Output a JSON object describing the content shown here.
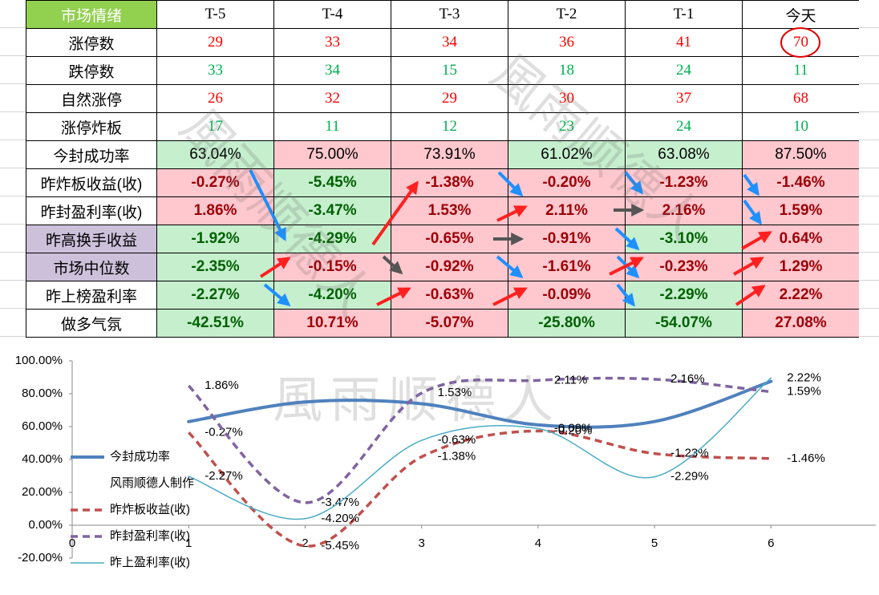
{
  "watermark": "風雨顺德人",
  "table": {
    "rows": [
      {
        "cells": [
          "市场情绪",
          "T-5",
          "T-4",
          "T-3",
          "T-2",
          "T-1",
          "今天"
        ],
        "fills": [
          "#92d050",
          "#ffffff",
          "#ffffff",
          "#ffffff",
          "#ffffff",
          "#ffffff",
          "#ffffff"
        ],
        "ink": [
          "#ffffff",
          "#000000",
          "#000000",
          "#000000",
          "#000000",
          "#000000",
          "#000000"
        ],
        "font": "serif",
        "bold": false
      },
      {
        "cells": [
          "涨停数",
          29,
          33,
          34,
          36,
          41,
          70
        ],
        "fills": [
          "#ffffff",
          "#ffffff",
          "#ffffff",
          "#ffffff",
          "#ffffff",
          "#ffffff",
          "#ffffff"
        ],
        "ink": [
          "#000000",
          "#ff0000",
          "#ff0000",
          "#ff0000",
          "#ff0000",
          "#ff0000",
          "#ff0000"
        ],
        "font": "serif",
        "bold": false
      },
      {
        "cells": [
          "跌停数",
          33,
          34,
          15,
          18,
          24,
          11
        ],
        "fills": [
          "#ffffff",
          "#ffffff",
          "#ffffff",
          "#ffffff",
          "#ffffff",
          "#ffffff",
          "#ffffff"
        ],
        "ink": [
          "#000000",
          "#00b050",
          "#00b050",
          "#00b050",
          "#00b050",
          "#00b050",
          "#00b050"
        ],
        "font": "serif",
        "bold": false
      },
      {
        "cells": [
          "自然涨停",
          26,
          32,
          29,
          30,
          37,
          68
        ],
        "fills": [
          "#ffffff",
          "#ffffff",
          "#ffffff",
          "#ffffff",
          "#ffffff",
          "#ffffff",
          "#ffffff"
        ],
        "ink": [
          "#000000",
          "#ff0000",
          "#ff0000",
          "#ff0000",
          "#ff0000",
          "#ff0000",
          "#ff0000"
        ],
        "font": "serif",
        "bold": false
      },
      {
        "cells": [
          "涨停炸板",
          17,
          11,
          12,
          23,
          24,
          10
        ],
        "fills": [
          "#ffffff",
          "#ffffff",
          "#ffffff",
          "#ffffff",
          "#ffffff",
          "#ffffff",
          "#ffffff"
        ],
        "ink": [
          "#000000",
          "#00b050",
          "#00b050",
          "#00b050",
          "#00b050",
          "#00b050",
          "#00b050"
        ],
        "font": "serif",
        "bold": false
      },
      {
        "cells": [
          "今封成功率",
          "63.04%",
          "75.00%",
          "73.91%",
          "61.02%",
          "63.08%",
          "87.50%"
        ],
        "fills": [
          "#ffffff",
          "#c6efce",
          "#ffc7ce",
          "#ffc7ce",
          "#c6efce",
          "#c6efce",
          "#ffc7ce"
        ],
        "ink": [
          "#000000",
          "#000000",
          "#000000",
          "#000000",
          "#000000",
          "#000000",
          "#000000"
        ],
        "font": "sans",
        "bold": false
      },
      {
        "cells": [
          "昨炸板收益(收)",
          "-0.27%",
          "-5.45%",
          "-1.38%",
          "-0.20%",
          "-1.23%",
          "-1.46%"
        ],
        "fills": [
          "#ffffff",
          "#ffc7ce",
          "#c6efce",
          "#ffc7ce",
          "#ffc7ce",
          "#ffc7ce",
          "#ffc7ce"
        ],
        "ink": [
          "#000000",
          "#9c0006",
          "#006100",
          "#9c0006",
          "#9c0006",
          "#9c0006",
          "#9c0006"
        ],
        "font": "sans",
        "bold": true
      },
      {
        "cells": [
          "昨封盈利率(收)",
          "1.86%",
          "-3.47%",
          "1.53%",
          "2.11%",
          "2.16%",
          "1.59%"
        ],
        "fills": [
          "#ffffff",
          "#ffc7ce",
          "#c6efce",
          "#ffc7ce",
          "#ffc7ce",
          "#ffc7ce",
          "#ffc7ce"
        ],
        "ink": [
          "#000000",
          "#9c0006",
          "#006100",
          "#9c0006",
          "#9c0006",
          "#9c0006",
          "#9c0006"
        ],
        "font": "sans",
        "bold": true
      },
      {
        "cells": [
          "昨高换手收益",
          "-1.92%",
          "-4.29%",
          "-0.65%",
          "-0.91%",
          "-3.10%",
          "0.64%"
        ],
        "fills": [
          "#ccc0da",
          "#c6efce",
          "#c6efce",
          "#ffc7ce",
          "#ffc7ce",
          "#c6efce",
          "#ffc7ce"
        ],
        "ink": [
          "#000000",
          "#006100",
          "#006100",
          "#9c0006",
          "#9c0006",
          "#006100",
          "#9c0006"
        ],
        "font": "sans",
        "bold": true
      },
      {
        "cells": [
          "市场中位数",
          "-2.35%",
          "-0.15%",
          "-0.92%",
          "-1.61%",
          "-0.23%",
          "1.29%"
        ],
        "fills": [
          "#ccc0da",
          "#c6efce",
          "#ffc7ce",
          "#ffc7ce",
          "#ffc7ce",
          "#ffc7ce",
          "#ffc7ce"
        ],
        "ink": [
          "#000000",
          "#006100",
          "#9c0006",
          "#9c0006",
          "#9c0006",
          "#9c0006",
          "#9c0006"
        ],
        "font": "sans",
        "bold": true
      },
      {
        "cells": [
          "昨上榜盈利率",
          "-2.27%",
          "-4.20%",
          "-0.63%",
          "-0.09%",
          "-2.29%",
          "2.22%"
        ],
        "fills": [
          "#ffffff",
          "#c6efce",
          "#c6efce",
          "#ffc7ce",
          "#ffc7ce",
          "#c6efce",
          "#ffc7ce"
        ],
        "ink": [
          "#000000",
          "#006100",
          "#006100",
          "#9c0006",
          "#9c0006",
          "#006100",
          "#9c0006"
        ],
        "font": "sans",
        "bold": true
      },
      {
        "cells": [
          "做多气氛",
          "-42.51%",
          "10.71%",
          "-5.07%",
          "-25.80%",
          "-54.07%",
          "27.08%"
        ],
        "fills": [
          "#ffffff",
          "#c6efce",
          "#ffc7ce",
          "#ffc7ce",
          "#c6efce",
          "#c6efce",
          "#ffc7ce"
        ],
        "ink": [
          "#000000",
          "#006100",
          "#9c0006",
          "#9c0006",
          "#006100",
          "#006100",
          "#9c0006"
        ],
        "font": "sans",
        "bold": true
      }
    ]
  },
  "chart_data": {
    "type": "line",
    "x": [
      1,
      2,
      3,
      4,
      5,
      6
    ],
    "xlim": [
      0,
      6.9
    ],
    "xticks": [
      0,
      1,
      2,
      3,
      4,
      5,
      6
    ],
    "ylim": [
      -20,
      100
    ],
    "yticks": [
      {
        "value": -20,
        "label": "-20.00%"
      },
      {
        "value": 0,
        "label": "0.00%"
      },
      {
        "value": 20,
        "label": "20.00%"
      },
      {
        "value": 40,
        "label": "40.00%"
      },
      {
        "value": 60,
        "label": "60.00%"
      },
      {
        "value": 80,
        "label": "80.00%"
      },
      {
        "value": 100,
        "label": "100.00%"
      }
    ],
    "y2lim": [
      -6,
      3
    ],
    "grid": false,
    "legend": "left",
    "series": [
      {
        "name": "今封成功率",
        "color": "#4f81bd",
        "style": "solid",
        "width": 4,
        "values": [
          63.04,
          75.0,
          73.91,
          61.02,
          63.08,
          87.5
        ]
      },
      {
        "name": "风雨顺德人制作",
        "color": "none",
        "style": "none",
        "width": 0,
        "values": [
          null,
          null,
          null,
          null,
          null,
          null
        ]
      },
      {
        "name": "昨炸板收益(收)",
        "color": "#c0504d",
        "style": "dashed",
        "width": 3.5,
        "axis": "y2",
        "values": [
          -0.27,
          -5.45,
          -1.38,
          -0.2,
          -1.23,
          -1.46
        ],
        "value_labels": [
          "-0.27%",
          "-5.45%",
          "-1.38%",
          "-0.20%",
          "-1.23%",
          "-1.46%"
        ]
      },
      {
        "name": "昨封盈利率(收)",
        "color": "#8064a2",
        "style": "dashed",
        "width": 3.5,
        "axis": "y2",
        "values": [
          1.86,
          -3.47,
          1.53,
          2.11,
          2.16,
          1.59
        ],
        "value_labels": [
          "1.86%",
          "-3.47%",
          "1.53%",
          "2.11%",
          "2.16%",
          "1.59%"
        ]
      },
      {
        "name": "昨上盈利率(收)",
        "color": "#4bacc6",
        "style": "solid",
        "width": 1.5,
        "axis": "y2",
        "values": [
          -2.27,
          -4.2,
          -0.63,
          -0.09,
          -2.29,
          2.22
        ],
        "value_labels": [
          "-2.27%",
          "-4.20%",
          "-0.63%",
          "-0.09%",
          "-2.29%",
          "2.22%"
        ]
      }
    ]
  }
}
